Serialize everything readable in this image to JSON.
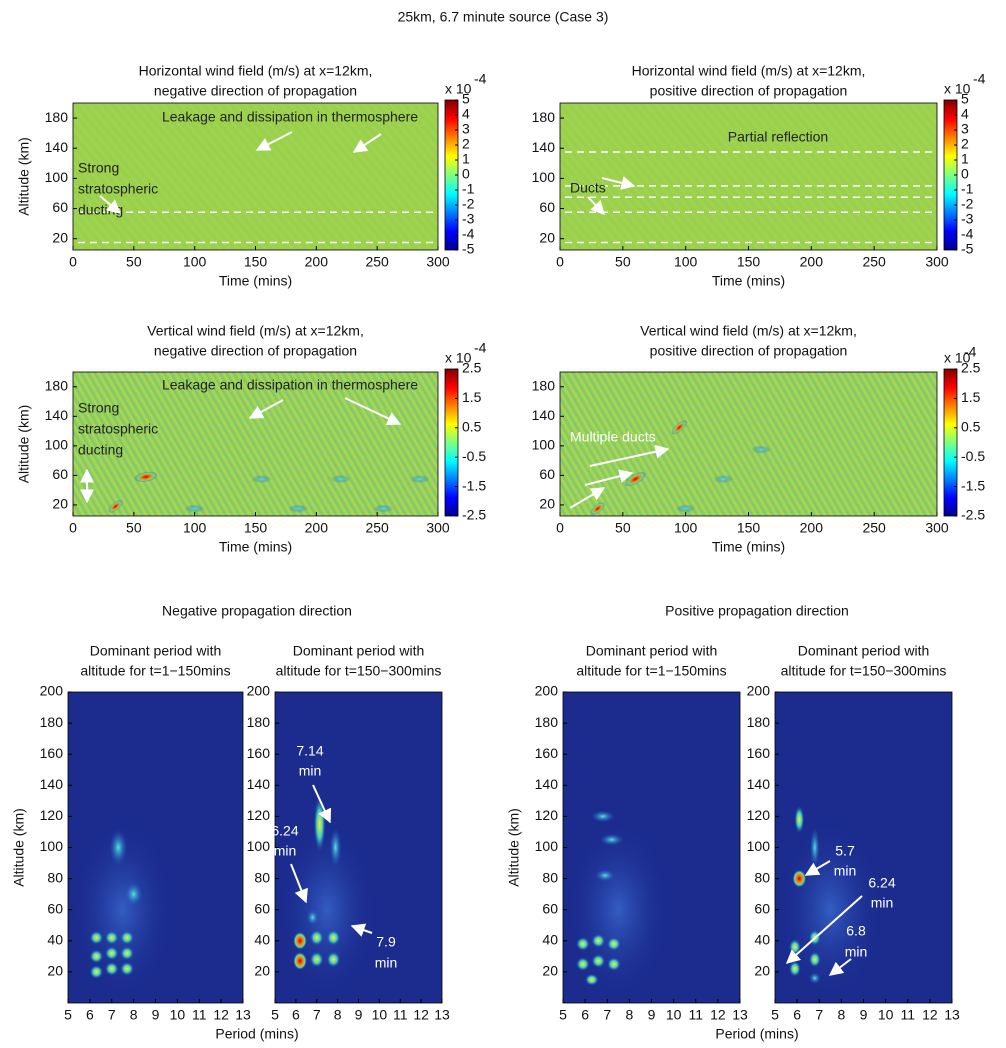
{
  "title": "25km, 6.7 minute source (Case 3)",
  "section_titles": [
    "Negative propagation direction",
    "Positive propagation direction"
  ],
  "chart_data": [
    {
      "type": "heatmap",
      "title": [
        "Horizontal wind field (m/s) at x=12km,",
        "negative direction of propagation"
      ],
      "xlabel": "Time (mins)",
      "ylabel": "Altitude (km)",
      "xlim": [
        0,
        300
      ],
      "xticks": [
        0,
        50,
        100,
        150,
        200,
        250,
        300
      ],
      "ylim": [
        5,
        200
      ],
      "yticks": [
        20,
        60,
        100,
        140,
        180
      ],
      "clim": [
        -5,
        5
      ],
      "cticks": [
        -5,
        -4,
        -3,
        -2,
        -1,
        0,
        1,
        2,
        3,
        4,
        5
      ],
      "colorbar_label": "x 10",
      "colorbar_exponent": "-4",
      "duct_altitudes": [
        15,
        55
      ],
      "annotations": [
        {
          "text": [
            "Leakage and dissipation in thermosphere"
          ]
        },
        {
          "text": [
            "Strong",
            "stratospheric",
            "ducting"
          ]
        }
      ]
    },
    {
      "type": "heatmap",
      "title": [
        "Horizontal wind field (m/s) at x=12km,",
        "positive direction of propagation"
      ],
      "xlabel": "Time (mins)",
      "xlim": [
        0,
        300
      ],
      "xticks": [
        0,
        50,
        100,
        150,
        200,
        250,
        300
      ],
      "ylim": [
        5,
        200
      ],
      "yticks": [
        20,
        60,
        100,
        140,
        180
      ],
      "clim": [
        -5,
        5
      ],
      "cticks": [
        -5,
        -4,
        -3,
        -2,
        -1,
        0,
        1,
        2,
        3,
        4,
        5
      ],
      "colorbar_label": "x 10",
      "colorbar_exponent": "-4",
      "duct_altitudes": [
        15,
        55,
        75,
        90,
        135
      ],
      "annotations": [
        {
          "text": [
            "Partial reflection"
          ]
        },
        {
          "text": [
            "Ducts"
          ]
        }
      ]
    },
    {
      "type": "heatmap",
      "title": [
        "Vertical wind field (m/s) at x=12km,",
        "negative direction of propagation"
      ],
      "xlabel": "Time (mins)",
      "ylabel": "Altitude (km)",
      "xlim": [
        0,
        300
      ],
      "xticks": [
        0,
        50,
        100,
        150,
        200,
        250,
        300
      ],
      "ylim": [
        5,
        200
      ],
      "yticks": [
        20,
        60,
        100,
        140,
        180
      ],
      "clim": [
        -2.5,
        2.5
      ],
      "cticks": [
        -2.5,
        -1.5,
        -0.5,
        0.5,
        1.5,
        2.5
      ],
      "colorbar_label": "x 10",
      "colorbar_exponent": "-4",
      "annotations": [
        {
          "text": [
            "Leakage and dissipation in thermosphere"
          ]
        },
        {
          "text": [
            "Strong",
            "stratospheric",
            "ducting"
          ]
        }
      ]
    },
    {
      "type": "heatmap",
      "title": [
        "Vertical wind field (m/s) at x=12km,",
        "positive direction of propagation"
      ],
      "xlabel": "Time (mins)",
      "xlim": [
        0,
        300
      ],
      "xticks": [
        0,
        50,
        100,
        150,
        200,
        250,
        300
      ],
      "ylim": [
        5,
        200
      ],
      "yticks": [
        20,
        60,
        100,
        140,
        180
      ],
      "clim": [
        -2.5,
        2.5
      ],
      "cticks": [
        -2.5,
        -1.5,
        -0.5,
        0.5,
        1.5,
        2.5
      ],
      "colorbar_label": "x 10",
      "colorbar_exponent": "-4",
      "annotations": [
        {
          "text": [
            "Multiple ducts"
          ]
        }
      ]
    },
    {
      "type": "spectrum",
      "title": [
        "Dominant period with",
        "altitude for t=1−150mins"
      ],
      "ylabel": "Altitude (km)",
      "xlim": [
        5,
        13
      ],
      "xticks": [
        5,
        6,
        7,
        8,
        9,
        10,
        11,
        12,
        13
      ],
      "ylim": [
        0,
        200
      ],
      "yticks": [
        20,
        40,
        60,
        80,
        100,
        120,
        140,
        160,
        180,
        200
      ],
      "annotations": []
    },
    {
      "type": "spectrum",
      "title": [
        "Dominant period with",
        "altitude for t=150−300mins"
      ],
      "xlabel": "Period (mins)",
      "xlim": [
        5,
        13
      ],
      "xticks": [
        5,
        6,
        7,
        8,
        9,
        10,
        11,
        12,
        13
      ],
      "ylim": [
        0,
        200
      ],
      "yticks": [
        20,
        40,
        60,
        80,
        100,
        120,
        140,
        160,
        180,
        200
      ],
      "annotations": [
        {
          "text": [
            "7.14",
            "min"
          ]
        },
        {
          "text": [
            "6.24",
            "min"
          ]
        },
        {
          "text": [
            "7.9",
            "min"
          ]
        }
      ]
    },
    {
      "type": "spectrum",
      "title": [
        "Dominant period with",
        "altitude for t=1−150mins"
      ],
      "ylabel": "Altitude (km)",
      "xlim": [
        5,
        13
      ],
      "xticks": [
        5,
        6,
        7,
        8,
        9,
        10,
        11,
        12,
        13
      ],
      "ylim": [
        0,
        200
      ],
      "yticks": [
        20,
        40,
        60,
        80,
        100,
        120,
        140,
        160,
        180,
        200
      ],
      "annotations": []
    },
    {
      "type": "spectrum",
      "title": [
        "Dominant period with",
        "altitude for t=150−300mins"
      ],
      "xlabel": "Period (mins)",
      "xlim": [
        5,
        13
      ],
      "xticks": [
        5,
        6,
        7,
        8,
        9,
        10,
        11,
        12,
        13
      ],
      "ylim": [
        0,
        200
      ],
      "yticks": [
        20,
        40,
        60,
        80,
        100,
        120,
        140,
        160,
        180,
        200
      ],
      "annotations": [
        {
          "text": [
            "5.7",
            "min"
          ]
        },
        {
          "text": [
            "6.24",
            "min"
          ]
        },
        {
          "text": [
            "6.8",
            "min"
          ]
        }
      ]
    }
  ]
}
